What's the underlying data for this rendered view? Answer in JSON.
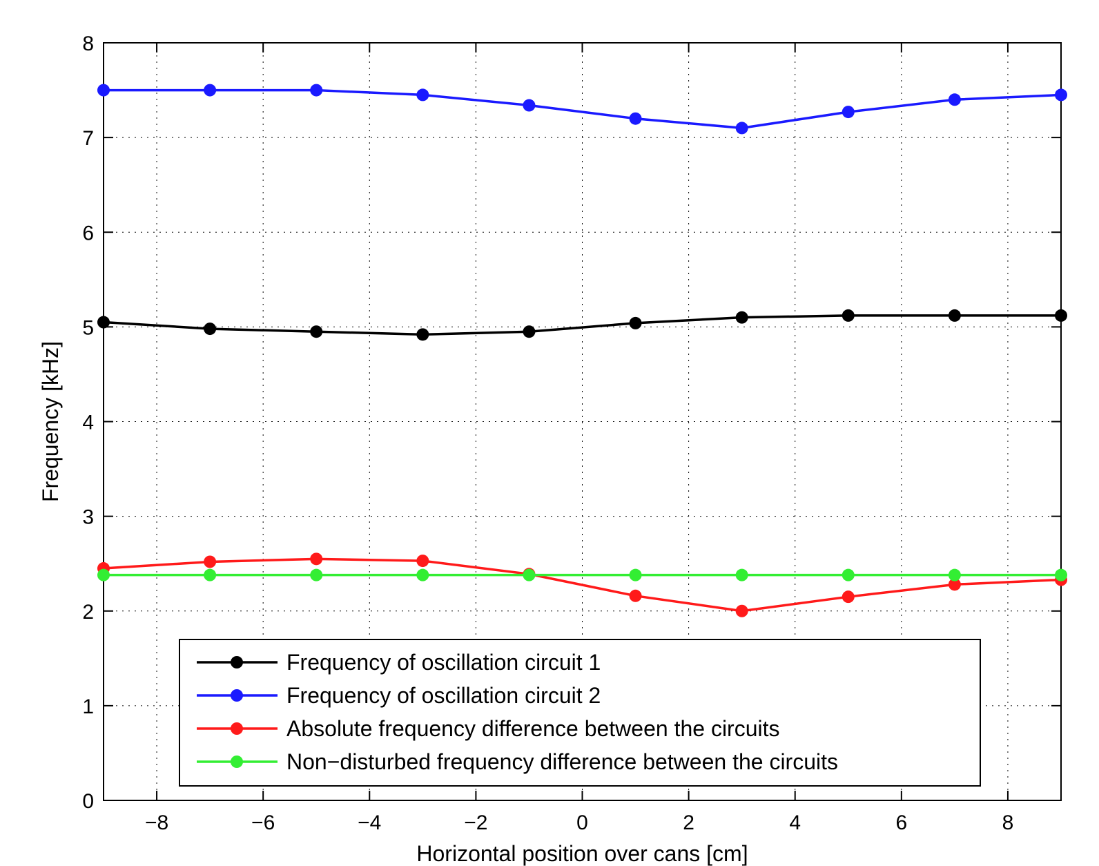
{
  "chart_data": {
    "type": "line",
    "title": "",
    "xlabel": "Horizontal position over cans [cm]",
    "ylabel": "Frequency [kHz]",
    "xlim": [
      -9,
      9
    ],
    "ylim": [
      0,
      8
    ],
    "xticks": [
      -8,
      -6,
      -4,
      -2,
      0,
      2,
      4,
      6,
      8
    ],
    "xtick_labels": [
      "−8",
      "−6",
      "−4",
      "−2",
      "0",
      "2",
      "4",
      "6",
      "8"
    ],
    "yticks": [
      0,
      1,
      2,
      3,
      4,
      5,
      6,
      7,
      8
    ],
    "ytick_labels": [
      "0",
      "1",
      "2",
      "3",
      "4",
      "5",
      "6",
      "7",
      "8"
    ],
    "grid": true,
    "legend_position": "bottom-center",
    "x": [
      -9,
      -7,
      -5,
      -3,
      -1,
      1,
      3,
      5,
      7,
      9
    ],
    "series": [
      {
        "name": "Frequency of oscillation circuit 1",
        "color": "#000000",
        "values": [
          5.05,
          4.98,
          4.95,
          4.92,
          4.95,
          5.04,
          5.1,
          5.12,
          5.12,
          5.12
        ]
      },
      {
        "name": "Frequency of oscillation circuit 2",
        "color": "#1a1aff",
        "values": [
          7.5,
          7.5,
          7.5,
          7.45,
          7.34,
          7.2,
          7.1,
          7.27,
          7.4,
          7.45
        ]
      },
      {
        "name": "Absolute frequency difference between the circuits",
        "color": "#ff1a1a",
        "values": [
          2.45,
          2.52,
          2.55,
          2.53,
          2.39,
          2.16,
          2.0,
          2.15,
          2.28,
          2.33
        ]
      },
      {
        "name": "Non−disturbed frequency difference between the circuits",
        "color": "#33ee33",
        "values": [
          2.38,
          2.38,
          2.38,
          2.38,
          2.38,
          2.38,
          2.38,
          2.38,
          2.38,
          2.38
        ]
      }
    ]
  }
}
